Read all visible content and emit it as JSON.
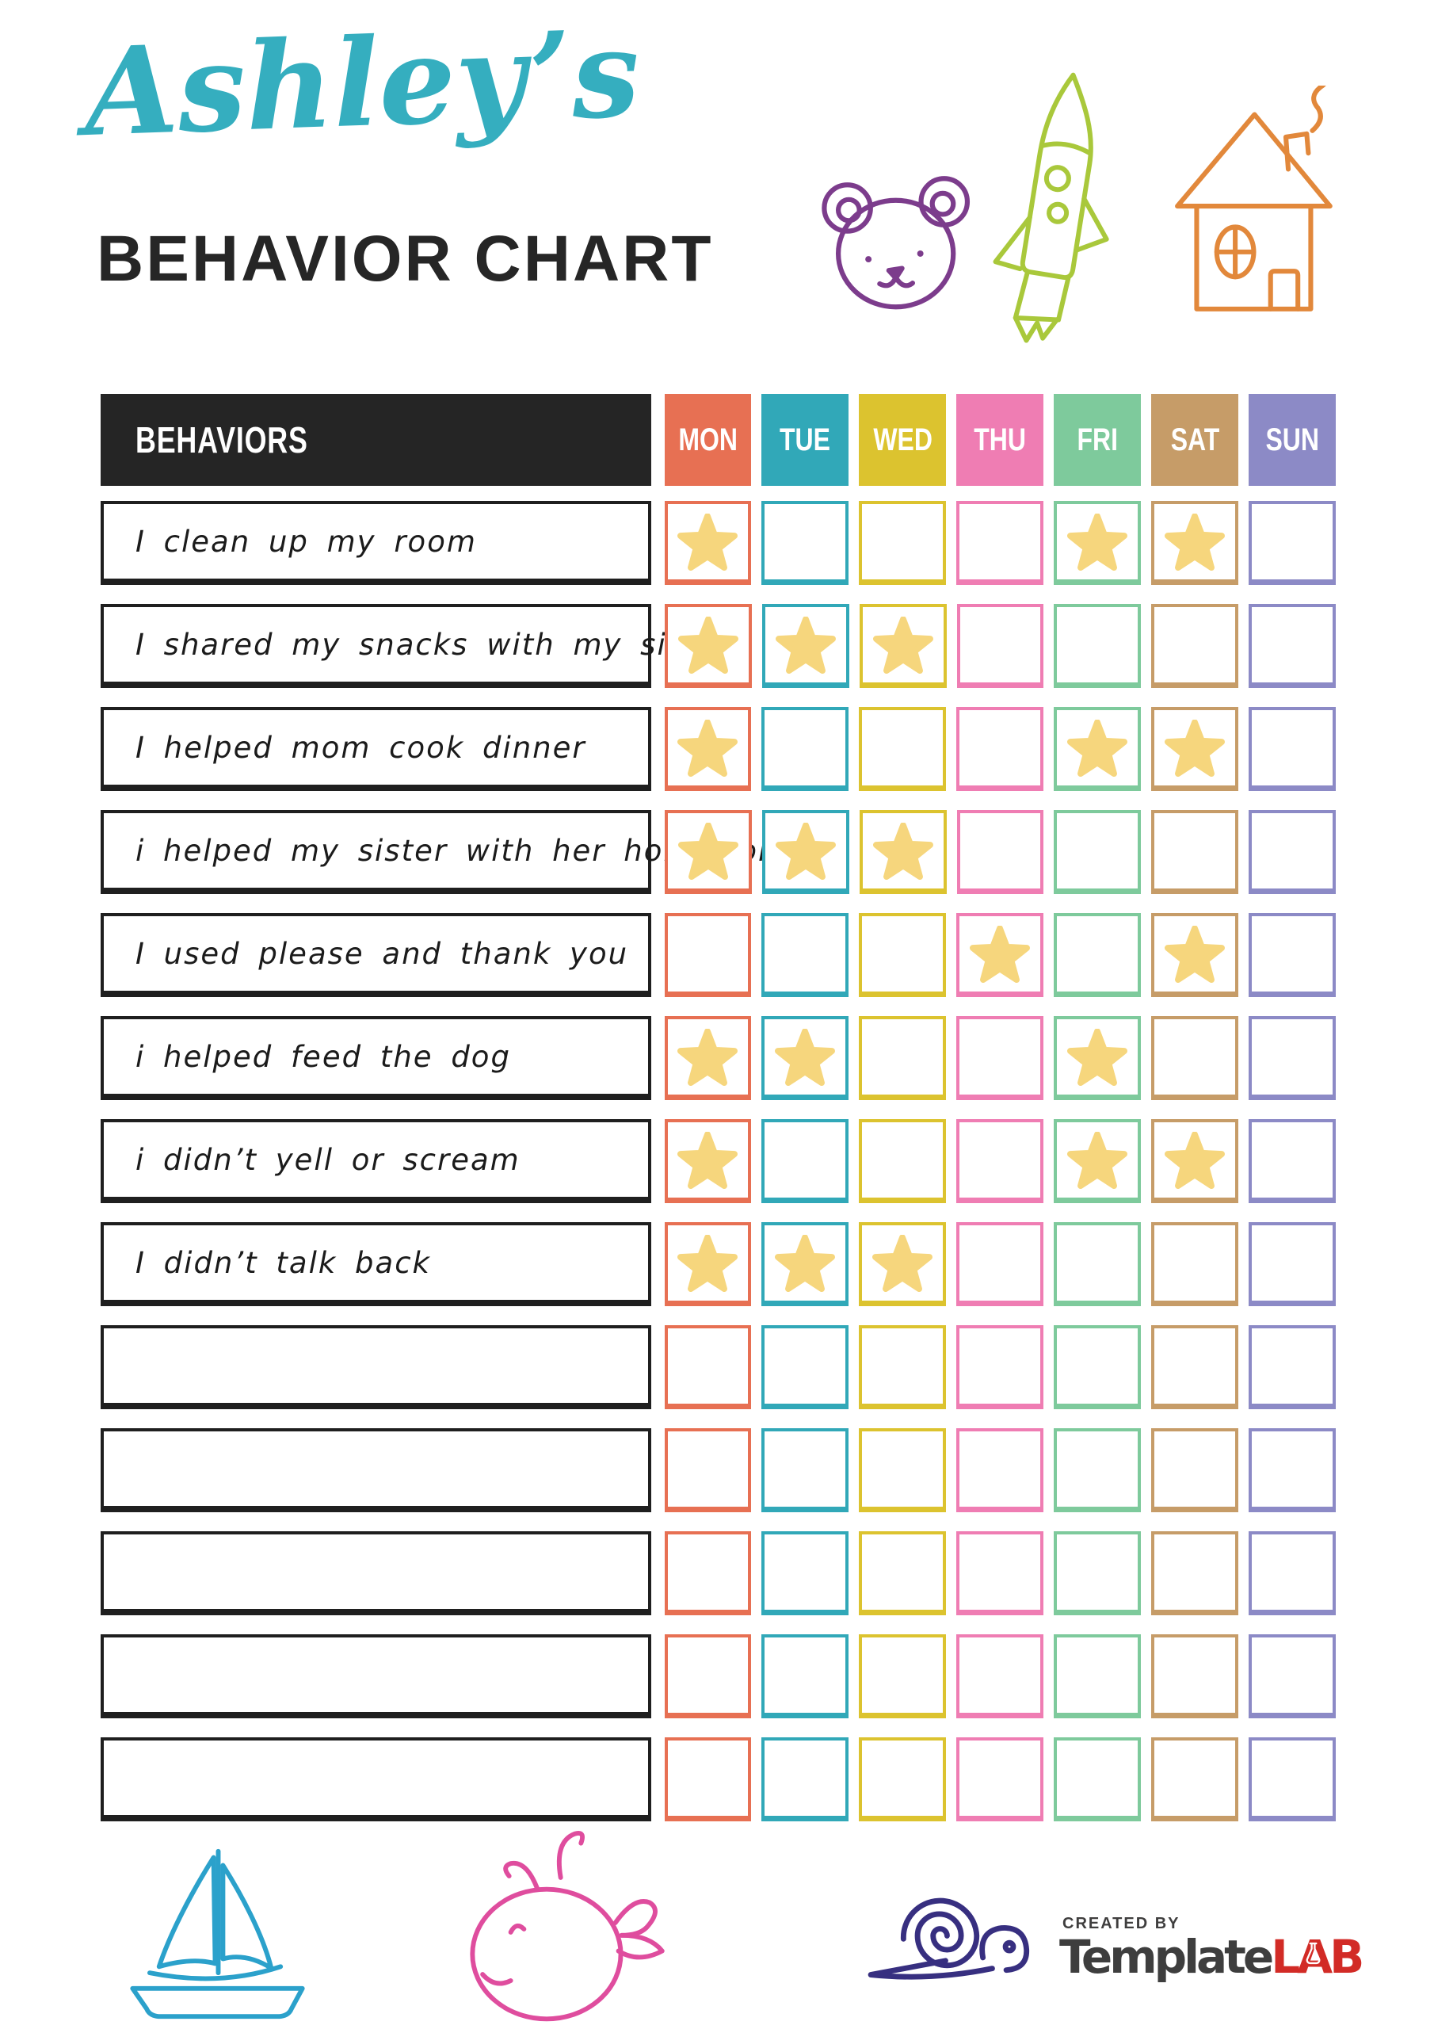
{
  "header": {
    "script_title": "Ashley’s",
    "main_title": "BEHAVIOR CHART"
  },
  "table": {
    "behaviors_header": "BEHAVIORS",
    "days": [
      {
        "label": "MON",
        "color": "#E77053"
      },
      {
        "label": "TUE",
        "color": "#31A8B8"
      },
      {
        "label": "WED",
        "color": "#DCC32F"
      },
      {
        "label": "THU",
        "color": "#EF7DB3"
      },
      {
        "label": "FRI",
        "color": "#7ECA9C"
      },
      {
        "label": "SAT",
        "color": "#C69C68"
      },
      {
        "label": "SUN",
        "color": "#8C8AC6"
      }
    ],
    "rows": [
      {
        "label": "I clean up my room",
        "stars": [
          1,
          0,
          0,
          0,
          1,
          1,
          0
        ]
      },
      {
        "label": "I shared my snacks with my sister",
        "stars": [
          1,
          1,
          1,
          0,
          0,
          0,
          0
        ]
      },
      {
        "label": "I helped mom cook dinner",
        "stars": [
          1,
          0,
          0,
          0,
          1,
          1,
          0
        ]
      },
      {
        "label": "i helped my sister with her homework",
        "stars": [
          1,
          1,
          1,
          0,
          0,
          0,
          0
        ]
      },
      {
        "label": "I used please and thank you",
        "stars": [
          0,
          0,
          0,
          1,
          0,
          1,
          0
        ]
      },
      {
        "label": "i helped feed the dog",
        "stars": [
          1,
          1,
          0,
          0,
          1,
          0,
          0
        ]
      },
      {
        "label": "i didn’t yell or scream",
        "stars": [
          1,
          0,
          0,
          0,
          1,
          1,
          0
        ]
      },
      {
        "label": "I didn’t talk back",
        "stars": [
          1,
          1,
          1,
          0,
          0,
          0,
          0
        ]
      },
      {
        "label": "",
        "stars": [
          0,
          0,
          0,
          0,
          0,
          0,
          0
        ]
      },
      {
        "label": "",
        "stars": [
          0,
          0,
          0,
          0,
          0,
          0,
          0
        ]
      },
      {
        "label": "",
        "stars": [
          0,
          0,
          0,
          0,
          0,
          0,
          0
        ]
      },
      {
        "label": "",
        "stars": [
          0,
          0,
          0,
          0,
          0,
          0,
          0
        ]
      },
      {
        "label": "",
        "stars": [
          0,
          0,
          0,
          0,
          0,
          0,
          0
        ]
      }
    ],
    "star_color": "#F6D67D"
  },
  "footer": {
    "created_by": "CREATED BY",
    "brand_gray": "Template",
    "brand_red": "LAB"
  },
  "icons": {
    "top": [
      "bear-icon",
      "rocket-icon",
      "house-icon"
    ],
    "bottom": [
      "sailboat-icon",
      "whale-icon",
      "snail-icon"
    ],
    "logo": "flask-icon"
  },
  "colors": {
    "script_title": "#35AEBF",
    "main_title": "#262626",
    "behaviors_header_bg": "#252525",
    "row_border": "#1F1F1F",
    "logo_gray": "#3E3E3E",
    "logo_red": "#D22B26"
  }
}
